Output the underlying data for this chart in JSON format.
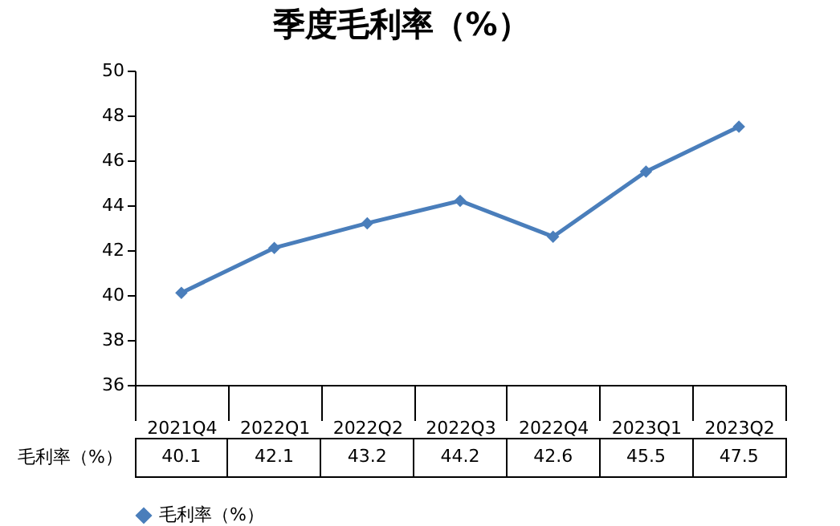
{
  "chart_data": {
    "type": "line",
    "title": "季度毛利率（%）",
    "categories": [
      "2021Q4",
      "2022Q1",
      "2022Q2",
      "2022Q3",
      "2022Q4",
      "2023Q1",
      "2023Q2"
    ],
    "series": [
      {
        "name": "毛利率（%）",
        "color": "#4a7ebb",
        "values": [
          40.1,
          42.1,
          43.2,
          44.2,
          42.6,
          45.5,
          47.5
        ]
      }
    ],
    "ylim": [
      36,
      50
    ],
    "yticks": [
      36,
      38,
      40,
      42,
      44,
      46,
      48,
      50
    ],
    "data_labels": true,
    "legend": "bottom",
    "marker": "diamond",
    "line_style": "solid"
  }
}
